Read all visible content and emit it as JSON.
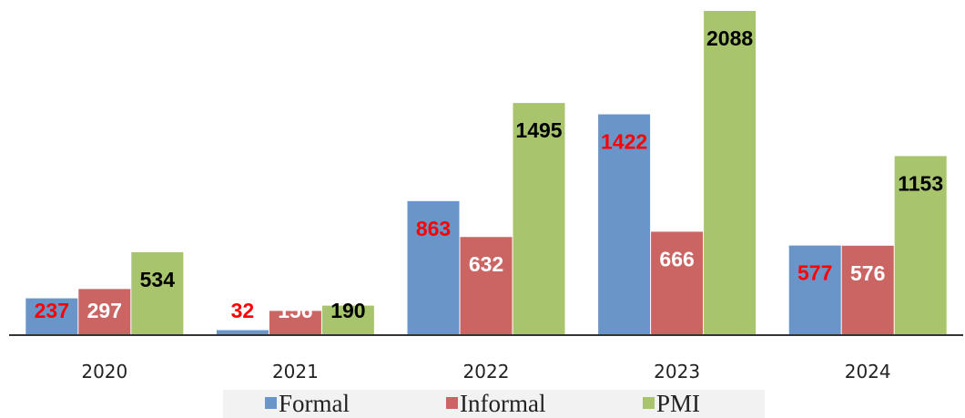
{
  "chart_data": {
    "type": "bar",
    "categories": [
      "2020",
      "2021",
      "2022",
      "2023",
      "2024"
    ],
    "series": [
      {
        "name": "Formal",
        "color": "#6a95c8",
        "label_color": "#ff0000",
        "values": [
          237,
          32,
          863,
          1422,
          577
        ]
      },
      {
        "name": "Informal",
        "color": "#cb6563",
        "label_color": "#ffffff",
        "values": [
          297,
          156,
          632,
          666,
          576
        ]
      },
      {
        "name": "PMI",
        "color": "#a8c46c",
        "label_color": "#000000",
        "values": [
          534,
          190,
          1495,
          2088,
          1153
        ]
      }
    ]
  }
}
